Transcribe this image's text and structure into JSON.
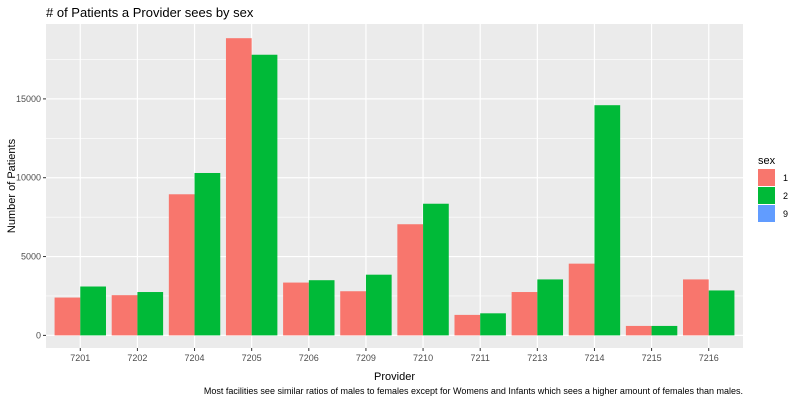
{
  "chart_data": {
    "type": "bar",
    "title": "# of Patients a Provider sees by sex",
    "xlabel": "Provider",
    "ylabel": "Number of Patients",
    "caption": "Most facilities see similar ratios of males to females except for Womens and Infants which sees a higher amount of females than males.",
    "categories": [
      "7201",
      "7202",
      "7204",
      "7205",
      "7206",
      "7209",
      "7210",
      "7211",
      "7213",
      "7214",
      "7215",
      "7216"
    ],
    "series": [
      {
        "name": "1",
        "color": "#f8766d",
        "values": [
          2400,
          2550,
          8950,
          18850,
          3350,
          2800,
          7050,
          1300,
          2750,
          4550,
          600,
          3550
        ]
      },
      {
        "name": "2",
        "color": "#00ba38",
        "values": [
          3100,
          2750,
          10300,
          17800,
          3500,
          3850,
          8350,
          1400,
          3550,
          14600,
          600,
          2850
        ]
      },
      {
        "name": "9",
        "color": "#619cff",
        "values": [
          0,
          0,
          0,
          0,
          0,
          0,
          0,
          0,
          0,
          0,
          0,
          0
        ]
      }
    ],
    "ylim": [
      -800,
      19750
    ],
    "yticks": [
      0,
      5000,
      10000,
      15000
    ],
    "ytick_labels": [
      "0",
      "5000",
      "10000",
      "15000"
    ],
    "legend": {
      "title": "sex",
      "position": "right"
    },
    "panel_background": "#ebebeb",
    "grid_color": "#ffffff",
    "grid": true
  }
}
